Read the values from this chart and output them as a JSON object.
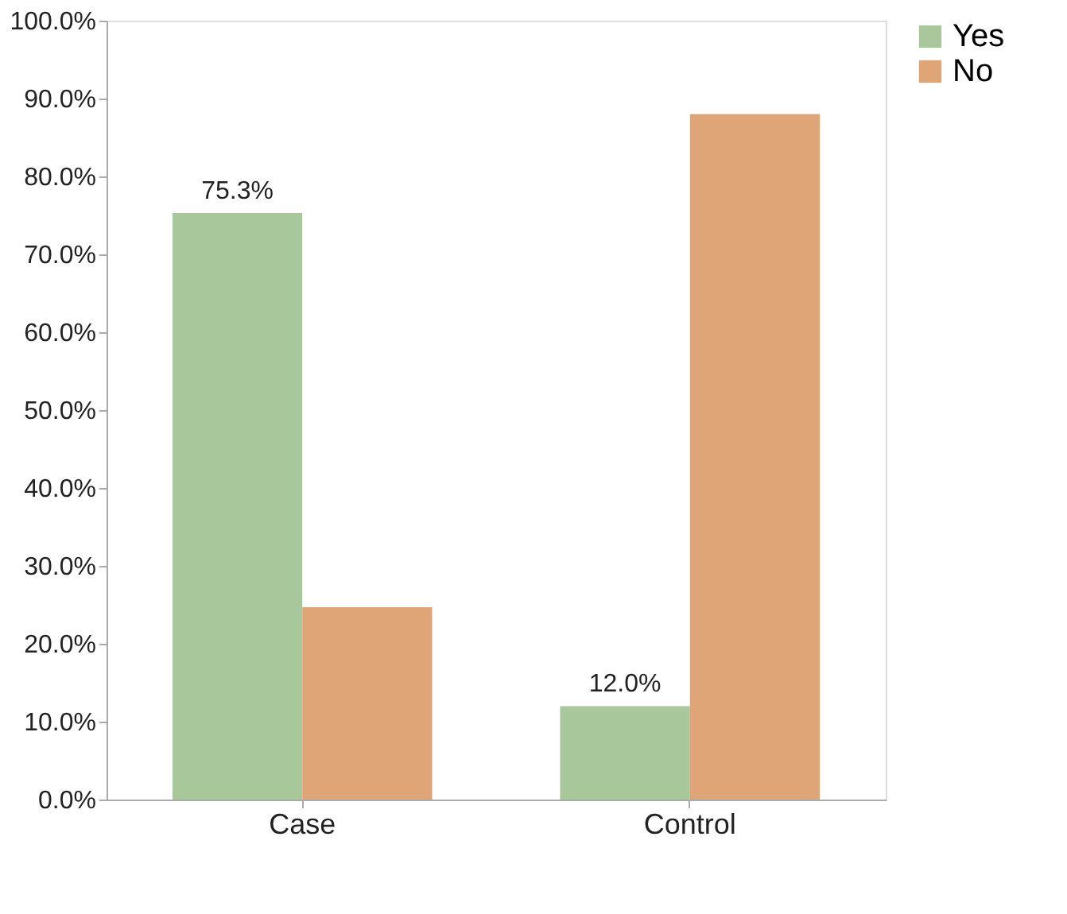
{
  "chart_data": {
    "type": "bar",
    "categories": [
      "Case",
      "Control"
    ],
    "series": [
      {
        "name": "Yes",
        "color": "#a8c79a",
        "values": [
          75.3,
          12.0
        ],
        "value_labels": [
          "75.3%",
          "12.0%"
        ]
      },
      {
        "name": "No",
        "color": "#e0a576",
        "values": [
          24.7,
          88.0
        ]
      }
    ],
    "ylim": [
      0,
      100
    ],
    "yticks": [
      {
        "value": 0,
        "label": "0.0%"
      },
      {
        "value": 10,
        "label": "10.0%"
      },
      {
        "value": 20,
        "label": "20.0%"
      },
      {
        "value": 30,
        "label": "30.0%"
      },
      {
        "value": 40,
        "label": "40.0%"
      },
      {
        "value": 50,
        "label": "50.0%"
      },
      {
        "value": 60,
        "label": "60.0%"
      },
      {
        "value": 70,
        "label": "70.0%"
      },
      {
        "value": 80,
        "label": "80.0%"
      },
      {
        "value": 90,
        "label": "90.0%"
      },
      {
        "value": 100,
        "label": "100.0%"
      }
    ],
    "grid": false,
    "legend": "right"
  }
}
